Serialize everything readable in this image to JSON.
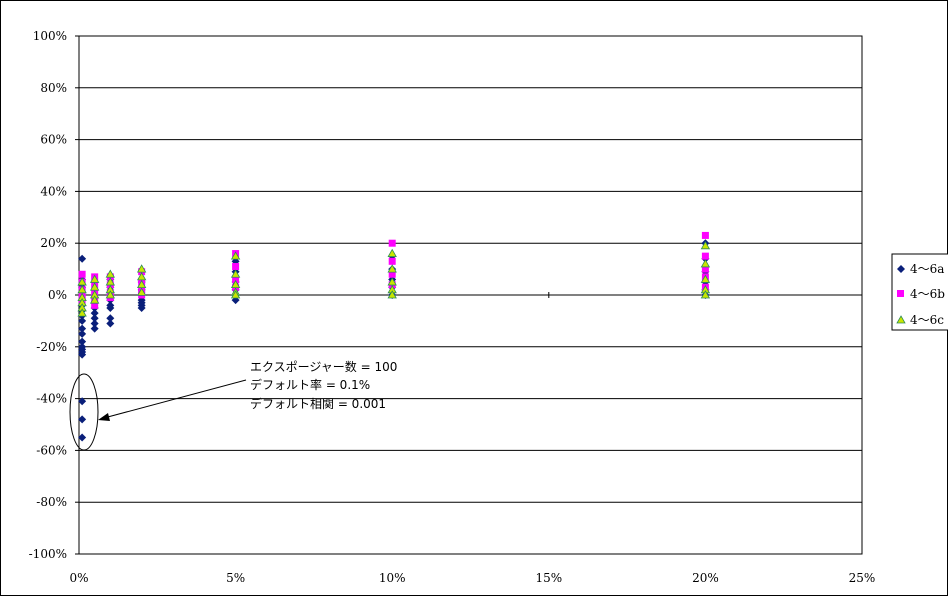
{
  "chart_data": {
    "type": "scatter",
    "title": "",
    "xlabel": "",
    "ylabel": "",
    "xlim": [
      0,
      25
    ],
    "ylim": [
      -100,
      100
    ],
    "grid": "horizontal",
    "legend_position": "right",
    "x_ticks": [
      {
        "value": 0,
        "label": "0%"
      },
      {
        "value": 5,
        "label": "5%"
      },
      {
        "value": 10,
        "label": "10%"
      },
      {
        "value": 15,
        "label": "15%"
      },
      {
        "value": 20,
        "label": "20%"
      },
      {
        "value": 25,
        "label": "25%"
      }
    ],
    "y_ticks": [
      {
        "value": 100,
        "label": "100%"
      },
      {
        "value": 80,
        "label": "80%"
      },
      {
        "value": 60,
        "label": "60%"
      },
      {
        "value": 40,
        "label": "40%"
      },
      {
        "value": 20,
        "label": "20%"
      },
      {
        "value": 0,
        "label": "0%"
      },
      {
        "value": -20,
        "label": "-20%"
      },
      {
        "value": -40,
        "label": "-40%"
      },
      {
        "value": -60,
        "label": "-60%"
      },
      {
        "value": -80,
        "label": "-80%"
      },
      {
        "value": -100,
        "label": "-100%"
      }
    ],
    "series": [
      {
        "name": "4～6a",
        "marker": "diamond",
        "color": "#0a1f7a",
        "points": [
          [
            0.1,
            14
          ],
          [
            0.1,
            6
          ],
          [
            0.1,
            3
          ],
          [
            0.1,
            0
          ],
          [
            0.1,
            -2
          ],
          [
            0.1,
            -4
          ],
          [
            0.1,
            -6
          ],
          [
            0.1,
            -8
          ],
          [
            0.1,
            -10
          ],
          [
            0.1,
            -13
          ],
          [
            0.1,
            -15
          ],
          [
            0.1,
            -18
          ],
          [
            0.1,
            -20
          ],
          [
            0.1,
            -21
          ],
          [
            0.1,
            -22
          ],
          [
            0.1,
            -23
          ],
          [
            0.1,
            -41
          ],
          [
            0.1,
            -48
          ],
          [
            0.1,
            -55
          ],
          [
            0.5,
            5
          ],
          [
            0.5,
            2
          ],
          [
            0.5,
            0
          ],
          [
            0.5,
            -3
          ],
          [
            0.5,
            -5
          ],
          [
            0.5,
            -7
          ],
          [
            0.5,
            -9
          ],
          [
            0.5,
            -11
          ],
          [
            0.5,
            -13
          ],
          [
            1,
            6
          ],
          [
            1,
            3
          ],
          [
            1,
            0
          ],
          [
            1,
            -2
          ],
          [
            1,
            -4
          ],
          [
            1,
            -5
          ],
          [
            1,
            -9
          ],
          [
            1,
            -11
          ],
          [
            2,
            5
          ],
          [
            2,
            2
          ],
          [
            2,
            0
          ],
          [
            2,
            -2
          ],
          [
            2,
            -3
          ],
          [
            2,
            -4
          ],
          [
            2,
            -5
          ],
          [
            5,
            13
          ],
          [
            5,
            9
          ],
          [
            5,
            5
          ],
          [
            5,
            2
          ],
          [
            5,
            0
          ],
          [
            5,
            -2
          ],
          [
            10,
            15
          ],
          [
            10,
            10
          ],
          [
            10,
            6
          ],
          [
            10,
            3
          ],
          [
            10,
            0
          ],
          [
            20,
            20
          ],
          [
            20,
            14
          ],
          [
            20,
            9
          ],
          [
            20,
            5
          ],
          [
            20,
            2
          ],
          [
            20,
            0
          ]
        ]
      },
      {
        "name": "4～6b",
        "marker": "square",
        "color": "#ff00ff",
        "points": [
          [
            0.1,
            8
          ],
          [
            0.1,
            5
          ],
          [
            0.1,
            2
          ],
          [
            0.1,
            0
          ],
          [
            0.1,
            -2
          ],
          [
            0.5,
            7
          ],
          [
            0.5,
            4
          ],
          [
            0.5,
            1
          ],
          [
            0.5,
            -2
          ],
          [
            0.5,
            -4
          ],
          [
            1,
            7
          ],
          [
            1,
            4
          ],
          [
            1,
            1
          ],
          [
            1,
            -1
          ],
          [
            2,
            9
          ],
          [
            2,
            5
          ],
          [
            2,
            2
          ],
          [
            2,
            0
          ],
          [
            5,
            16
          ],
          [
            5,
            11
          ],
          [
            5,
            6
          ],
          [
            5,
            3
          ],
          [
            10,
            20
          ],
          [
            10,
            13
          ],
          [
            10,
            8
          ],
          [
            10,
            4
          ],
          [
            20,
            23
          ],
          [
            20,
            15
          ],
          [
            20,
            10
          ],
          [
            20,
            7
          ],
          [
            20,
            3
          ]
        ]
      },
      {
        "name": "4～6c",
        "marker": "triangle",
        "color": "#c8e600",
        "points": [
          [
            0.1,
            5
          ],
          [
            0.1,
            2
          ],
          [
            0.1,
            -1
          ],
          [
            0.1,
            -3
          ],
          [
            0.1,
            -5
          ],
          [
            0.1,
            -7
          ],
          [
            0.5,
            6
          ],
          [
            0.5,
            3
          ],
          [
            0.5,
            0
          ],
          [
            0.5,
            -2
          ],
          [
            1,
            8
          ],
          [
            1,
            5
          ],
          [
            1,
            2
          ],
          [
            1,
            0
          ],
          [
            2,
            10
          ],
          [
            2,
            7
          ],
          [
            2,
            4
          ],
          [
            2,
            1
          ],
          [
            5,
            15
          ],
          [
            5,
            8
          ],
          [
            5,
            4
          ],
          [
            5,
            1
          ],
          [
            5,
            0
          ],
          [
            10,
            16
          ],
          [
            10,
            10
          ],
          [
            10,
            5
          ],
          [
            10,
            2
          ],
          [
            10,
            0
          ],
          [
            20,
            19
          ],
          [
            20,
            12
          ],
          [
            20,
            6
          ],
          [
            20,
            2
          ],
          [
            20,
            0
          ]
        ]
      }
    ],
    "annotation": {
      "lines": [
        "エクスポージャー数 = 100",
        "デフォルト率 = 0.1%",
        "デフォルト相関 = 0.001"
      ]
    }
  }
}
